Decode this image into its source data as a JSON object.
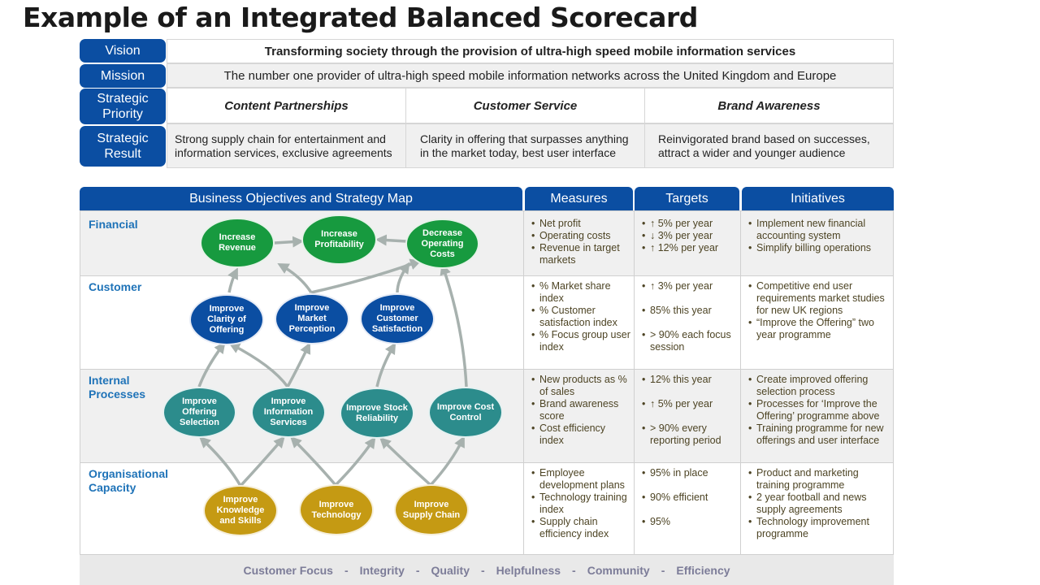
{
  "title": "Example of an Integrated Balanced Scorecard",
  "labels": {
    "vision": "Vision",
    "mission": "Mission",
    "priority": "Strategic Priority",
    "result": "Strategic Result"
  },
  "vision_text": "Transforming society through the provision of ultra-high speed mobile information services",
  "mission_text": "The number one provider of ultra-high speed mobile information networks across the United Kingdom and Europe",
  "priorities": [
    "Content Partnerships",
    "Customer Service",
    "Brand Awareness"
  ],
  "results": [
    "Strong supply chain for entertainment and information services, exclusive agreements",
    "Clarity in offering that surpasses anything in the market today, best user interface",
    "Reinvigorated brand based on successes, attract a wider and younger audience"
  ],
  "headers": {
    "objectives": "Business Objectives and Strategy Map",
    "measures": "Measures",
    "targets": "Targets",
    "initiatives": "Initiatives"
  },
  "sections": [
    "Financial",
    "Customer",
    "Internal Processes",
    "Organisational Capacity"
  ],
  "nodes": {
    "increase_revenue": "Increase Revenue",
    "increase_profitability": "Increase Profitability",
    "decrease_costs": "Decrease Operating Costs",
    "improve_clarity": "Improve Clarity of Offering",
    "improve_perception": "Improve Market Perception",
    "improve_satisfaction": "Improve Customer Satisfaction",
    "improve_selection": "Improve Offering Selection",
    "improve_info_services": "Improve Information Services",
    "improve_stock": "Improve Stock Reliability",
    "improve_cost_control": "Improve Cost Control",
    "improve_knowledge": "Improve Knowledge and Skills",
    "improve_technology": "Improve Technology",
    "improve_supply": "Improve Supply Chain"
  },
  "measures": [
    [
      "Net profit",
      "Operating costs",
      "Revenue in target markets"
    ],
    [
      "% Market share index",
      "% Customer satisfaction index",
      "% Focus group user index"
    ],
    [
      "New products as % of sales",
      "Brand awareness score",
      "Cost efficiency index"
    ],
    [
      "Employee development plans",
      "Technology training index",
      "Supply chain efficiency index"
    ]
  ],
  "targets": [
    [
      "↑ 5% per year",
      "↓ 3% per year",
      "↑ 12% per year"
    ],
    [
      "↑ 3% per year",
      "85% this year",
      "> 90% each focus session"
    ],
    [
      "12% this year",
      "↑ 5% per year",
      "> 90% every reporting period"
    ],
    [
      "95% in place",
      "90% efficient",
      "95%"
    ]
  ],
  "initiatives": [
    [
      "Implement new financial accounting system",
      "Simplify billing operations"
    ],
    [
      "Competitive end user requirements market studies for new UK regions",
      "“Improve the Offering” two year programme"
    ],
    [
      "Create improved offering selection process",
      "Processes for ‘Improve the Offering’ programme above",
      "Training programme for new offerings and user interface"
    ],
    [
      "Product and marketing training programme",
      "2 year football and news supply agreements",
      "Technology improvement programme"
    ]
  ],
  "values": [
    "Customer Focus",
    "-",
    "Integrity",
    "-",
    "Quality",
    "-",
    "Helpfulness",
    "-",
    "Community",
    "-",
    "Efficiency"
  ],
  "colors": {
    "header_blue": "#0b4ea2",
    "financial_green": "#179a3f",
    "customer_blue": "#0b4ea2",
    "process_teal": "#2c8c8c",
    "capacity_gold": "#c59a13",
    "section_label": "#1f73b8",
    "arrow_gray": "#a7b1ae"
  }
}
